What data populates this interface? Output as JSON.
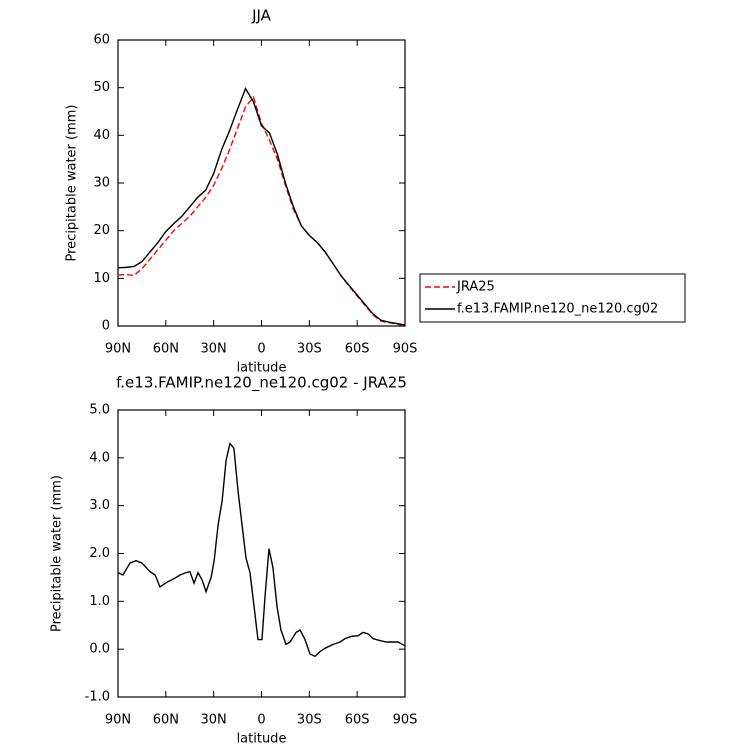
{
  "chart_data": [
    {
      "type": "line",
      "title": "JJA",
      "xlabel": "latitude",
      "ylabel": "Precipitable water (mm)",
      "x": [
        90,
        85,
        80,
        75,
        70,
        65,
        60,
        55,
        50,
        45,
        40,
        35,
        30,
        25,
        20,
        15,
        10,
        5,
        0,
        -5,
        -10,
        -15,
        -20,
        -25,
        -30,
        -35,
        -40,
        -45,
        -50,
        -55,
        -60,
        -65,
        -70,
        -75,
        -80,
        -85,
        -90
      ],
      "series": [
        {
          "name": "JRA25",
          "color": "#ff0000",
          "dash": true,
          "values": [
            10.7,
            10.8,
            10.6,
            12,
            14,
            16,
            18,
            20,
            21.5,
            23,
            25,
            27,
            29.5,
            33,
            37,
            41.5,
            46,
            48,
            42.5,
            39,
            35,
            29.5,
            24.5,
            21,
            19,
            17.5,
            15.5,
            13,
            10.5,
            8.3,
            6.3,
            4.3,
            2.3,
            1,
            0.7,
            0.4,
            0.1
          ]
        },
        {
          "name": "f.e13.FAMIP.ne120_ne120.cg02",
          "color": "#000000",
          "dash": false,
          "values": [
            12.2,
            12.3,
            12.5,
            13.5,
            15.5,
            17.5,
            19.8,
            21.5,
            23,
            25,
            27,
            28.5,
            32,
            37,
            41,
            45.5,
            49.8,
            47,
            42,
            40.5,
            36,
            30,
            25,
            21,
            19,
            17.5,
            15.5,
            13,
            10.5,
            8.5,
            6.5,
            4.5,
            2.5,
            1.2,
            0.8,
            0.5,
            0.2
          ]
        }
      ],
      "xlim": [
        90,
        -90
      ],
      "xticks": [
        {
          "value": 90,
          "label": "90N"
        },
        {
          "value": 60,
          "label": "60N"
        },
        {
          "value": 30,
          "label": "30N"
        },
        0,
        {
          "value": -30,
          "label": "30S"
        },
        {
          "value": -60,
          "label": "60S"
        },
        {
          "value": -90,
          "label": "90S"
        }
      ],
      "ylim": [
        0,
        60
      ],
      "yticks": [
        0,
        10,
        20,
        30,
        40,
        50,
        60
      ],
      "legend": "right"
    },
    {
      "type": "line",
      "title": "f.e13.FAMIP.ne120_ne120.cg02 - JRA25",
      "xlabel": "latitude",
      "ylabel": "Precipitable water (mm)",
      "x": [
        90,
        86.9,
        82.5,
        78.7,
        74.9,
        69.9,
        66.7,
        63.7,
        59.3,
        56.2,
        53.6,
        51.1,
        47.4,
        44.9,
        42.3,
        39.8,
        37.3,
        34.8,
        31.6,
        29.7,
        27.2,
        24.7,
        22.2,
        19.8,
        17.3,
        14.7,
        12.2,
        9.7,
        7.2,
        4.7,
        2.2,
        -0.3,
        -2.2,
        -4.7,
        -7.2,
        -9.7,
        -12.2,
        -15.4,
        -17.9,
        -21.7,
        -24.2,
        -27.3,
        -30.4,
        -33.6,
        -36.7,
        -39.9,
        -44.9,
        -49.3,
        -52.4,
        -56.8,
        -60.5,
        -63.7,
        -66.8,
        -70,
        -74.3,
        -78.1,
        -81.9,
        -85.6,
        -90
      ],
      "series": [
        {
          "name": null,
          "color": "#000000",
          "dash": false,
          "values": [
            1.6,
            1.55,
            1.8,
            1.85,
            1.8,
            1.62,
            1.55,
            1.3,
            1.4,
            1.45,
            1.5,
            1.55,
            1.6,
            1.62,
            1.38,
            1.6,
            1.45,
            1.2,
            1.5,
            1.85,
            2.6,
            3.1,
            3.95,
            4.3,
            4.2,
            3.3,
            2.6,
            1.9,
            1.6,
            0.9,
            0.2,
            0.2,
            1.1,
            2.1,
            1.7,
            0.9,
            0.4,
            0.1,
            0.15,
            0.35,
            0.4,
            0.2,
            -0.1,
            -0.15,
            -0.05,
            0.02,
            0.1,
            0.15,
            0.22,
            0.27,
            0.28,
            0.35,
            0.32,
            0.22,
            0.18,
            0.15,
            0.15,
            0.15,
            0.07
          ]
        }
      ],
      "xlim": [
        90,
        -90
      ],
      "xticks": [
        {
          "value": 90,
          "label": "90N"
        },
        {
          "value": 60,
          "label": "60N"
        },
        {
          "value": 30,
          "label": "30N"
        },
        0,
        {
          "value": -30,
          "label": "30S"
        },
        {
          "value": -60,
          "label": "60S"
        },
        {
          "value": -90,
          "label": "90S"
        }
      ],
      "ylim": [
        -1,
        5
      ],
      "yticks": [
        {
          "value": -1,
          "label": "-1.0"
        },
        {
          "value": 0,
          "label": "0.0"
        },
        {
          "value": 1,
          "label": "1.0"
        },
        {
          "value": 2,
          "label": "2.0"
        },
        {
          "value": 3,
          "label": "3.0"
        },
        {
          "value": 4,
          "label": "4.0"
        },
        {
          "value": 5,
          "label": "5.0"
        }
      ]
    }
  ]
}
